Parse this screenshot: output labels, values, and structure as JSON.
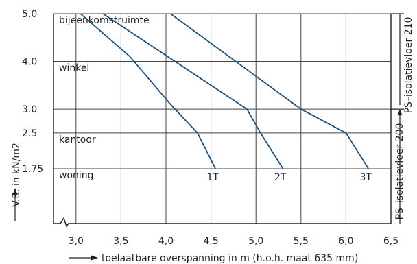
{
  "chart_data": {
    "type": "line",
    "xlabel": "toelaatbare overspanning in m (h.o.h. maat 635 mm)",
    "ylabel": "V.B. in kN/m2",
    "right_label_lower": "PS–isolatievloer 200",
    "right_label_upper": "PS–isolatievloer 210",
    "x_ticks": [
      "3,0",
      "3,5",
      "4,0",
      "4,5",
      "5,0",
      "5,5",
      "6,0",
      "6,5"
    ],
    "x_tick_values": [
      3.0,
      3.5,
      4.0,
      4.5,
      5.0,
      5.5,
      6.0,
      6.5
    ],
    "y_ticks": [
      "5.0",
      "4.0",
      "3.0",
      "2.5",
      "1.75"
    ],
    "y_tick_values": [
      5.0,
      4.0,
      3.0,
      2.5,
      1.75
    ],
    "xlim": [
      2.75,
      6.5
    ],
    "ylim": [
      0.6,
      5.0
    ],
    "grid": true,
    "categories": [
      {
        "label": "bijeenkomstruimte",
        "y": 5.0
      },
      {
        "label": "winkel",
        "y": 4.0
      },
      {
        "label": "kantoor",
        "y": 2.5
      },
      {
        "label": "woning",
        "y": 1.75
      }
    ],
    "series": [
      {
        "name": "1T",
        "x": [
          3.05,
          3.6,
          4.05,
          4.35,
          4.55
        ],
        "y": [
          5.0,
          4.1,
          3.1,
          2.5,
          1.75
        ]
      },
      {
        "name": "2T",
        "x": [
          3.3,
          4.1,
          4.9,
          5.05,
          5.3
        ],
        "y": [
          5.0,
          4.0,
          3.0,
          2.5,
          1.75
        ]
      },
      {
        "name": "3T",
        "x": [
          4.05,
          5.5,
          6.0,
          6.25
        ],
        "y": [
          5.0,
          3.0,
          2.5,
          1.75
        ]
      }
    ],
    "color": "#1f4e79"
  }
}
